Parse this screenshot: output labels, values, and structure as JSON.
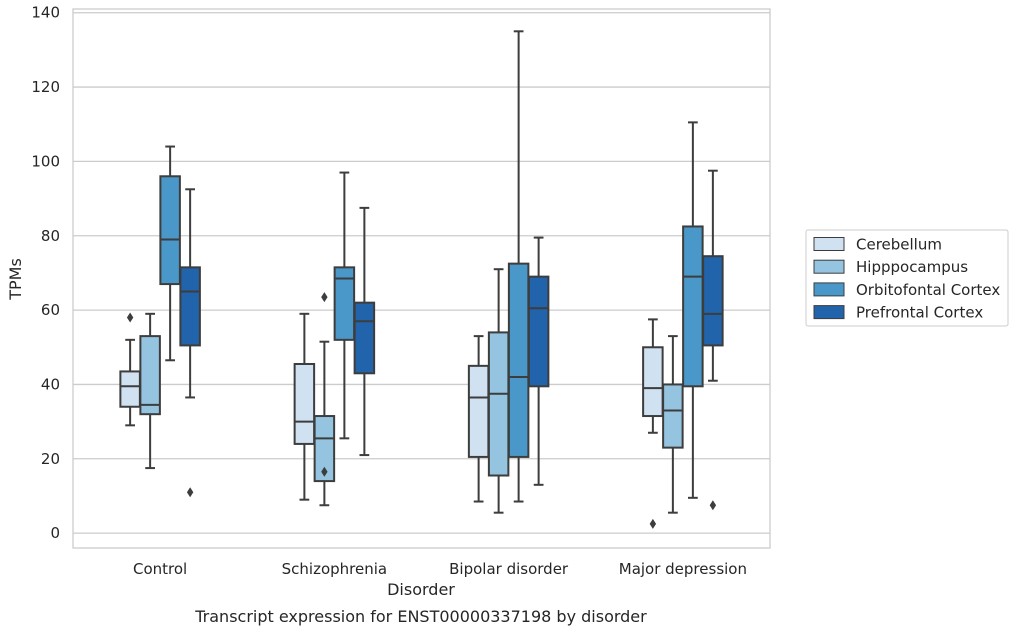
{
  "chart_data": {
    "type": "box",
    "caption": "Transcript expression for ENST00000337198 by disorder",
    "xlabel": "Disorder",
    "ylabel": "TPMs",
    "ylim": [
      -4,
      141
    ],
    "yticks": [
      0,
      20,
      40,
      60,
      80,
      100,
      120,
      140
    ],
    "grid": true,
    "legend_position": "right",
    "categories": [
      "Control",
      "Schizophrenia",
      "Bipolar disorder",
      "Major depression"
    ],
    "series": [
      {
        "name": "Cerebellum",
        "color": "#d0e1f2",
        "boxes": [
          {
            "whisker_low": 29,
            "q1": 34,
            "median": 39.5,
            "q3": 43.5,
            "whisker_high": 52,
            "outliers": [
              58
            ]
          },
          {
            "whisker_low": 9,
            "q1": 24,
            "median": 30,
            "q3": 45.5,
            "whisker_high": 59,
            "outliers": []
          },
          {
            "whisker_low": 8.5,
            "q1": 20.5,
            "median": 36.5,
            "q3": 45,
            "whisker_high": 53,
            "outliers": []
          },
          {
            "whisker_low": 27,
            "q1": 31.5,
            "median": 39,
            "q3": 50,
            "whisker_high": 57.5,
            "outliers": [
              2.5
            ]
          }
        ]
      },
      {
        "name": "Hipppocampus",
        "color": "#94c4df",
        "boxes": [
          {
            "whisker_low": 17.5,
            "q1": 32,
            "median": 34.5,
            "q3": 53,
            "whisker_high": 59,
            "outliers": []
          },
          {
            "whisker_low": 7.5,
            "q1": 14,
            "median": 25.5,
            "q3": 31.5,
            "whisker_high": 51.5,
            "outliers": [
              63.5,
              16.5
            ]
          },
          {
            "whisker_low": 5.5,
            "q1": 15.5,
            "median": 37.5,
            "q3": 54,
            "whisker_high": 71,
            "outliers": []
          },
          {
            "whisker_low": 5.5,
            "q1": 23,
            "median": 33,
            "q3": 40,
            "whisker_high": 53,
            "outliers": []
          }
        ]
      },
      {
        "name": "Orbitofontal Cortex",
        "color": "#4a98c9",
        "boxes": [
          {
            "whisker_low": 46.5,
            "q1": 67,
            "median": 79,
            "q3": 96,
            "whisker_high": 104,
            "outliers": []
          },
          {
            "whisker_low": 25.5,
            "q1": 52,
            "median": 68.5,
            "q3": 71.5,
            "whisker_high": 97,
            "outliers": []
          },
          {
            "whisker_low": 8.5,
            "q1": 20.5,
            "median": 42,
            "q3": 72.5,
            "whisker_high": 135,
            "outliers": []
          },
          {
            "whisker_low": 9.5,
            "q1": 39.5,
            "median": 69,
            "q3": 82.5,
            "whisker_high": 110.5,
            "outliers": []
          }
        ]
      },
      {
        "name": "Prefrontal Cortex",
        "color": "#2164ab",
        "boxes": [
          {
            "whisker_low": 36.5,
            "q1": 50.5,
            "median": 65,
            "q3": 71.5,
            "whisker_high": 92.5,
            "outliers": [
              11
            ]
          },
          {
            "whisker_low": 21,
            "q1": 43,
            "median": 57,
            "q3": 62,
            "whisker_high": 87.5,
            "outliers": []
          },
          {
            "whisker_low": 13,
            "q1": 39.5,
            "median": 60.5,
            "q3": 69,
            "whisker_high": 79.5,
            "outliers": []
          },
          {
            "whisker_low": 41,
            "q1": 50.5,
            "median": 59,
            "q3": 74.5,
            "whisker_high": 97.5,
            "outliers": [
              7.5
            ]
          }
        ]
      }
    ]
  }
}
